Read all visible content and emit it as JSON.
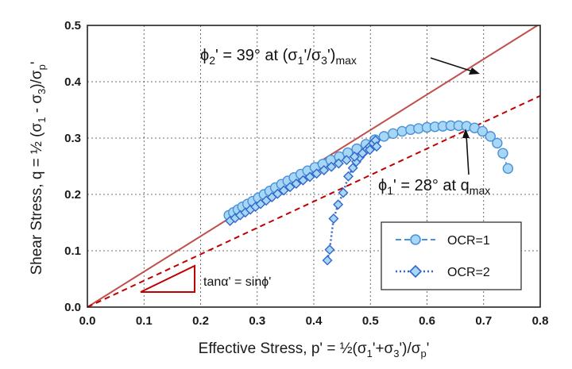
{
  "chart_data": {
    "type": "scatter",
    "xlabel": "Effective Stress, p' = ½(σ₁'+σ₃')/σp'",
    "ylabel": "Shear Stress, q = ½ (σ₁ - σ₃)/σp'",
    "xlim": [
      0.0,
      0.8
    ],
    "ylim": [
      0.0,
      0.5
    ],
    "x_ticks": [
      "0.0",
      "0.1",
      "0.2",
      "0.3",
      "0.4",
      "0.5",
      "0.6",
      "0.7",
      "0.8"
    ],
    "y_ticks": [
      "0.0",
      "0.1",
      "0.2",
      "0.3",
      "0.4",
      "0.5"
    ],
    "grid": "dotted",
    "series": [
      {
        "name": "OCR=1",
        "marker": "circle",
        "line": "dashed",
        "color": "#4a90d9",
        "fill": "#a6d8f5",
        "x": [
          0.25,
          0.258,
          0.266,
          0.274,
          0.283,
          0.292,
          0.302,
          0.312,
          0.322,
          0.332,
          0.343,
          0.354,
          0.365,
          0.377,
          0.389,
          0.402,
          0.416,
          0.43,
          0.445,
          0.46,
          0.476,
          0.492,
          0.508,
          0.524,
          0.54,
          0.556,
          0.571,
          0.585,
          0.6,
          0.614,
          0.628,
          0.642,
          0.656,
          0.67,
          0.684,
          0.698,
          0.712,
          0.724,
          0.734,
          0.743
        ],
        "y": [
          0.163,
          0.168,
          0.173,
          0.178,
          0.183,
          0.188,
          0.194,
          0.2,
          0.206,
          0.212,
          0.218,
          0.224,
          0.23,
          0.236,
          0.242,
          0.248,
          0.254,
          0.261,
          0.267,
          0.274,
          0.281,
          0.289,
          0.297,
          0.303,
          0.308,
          0.312,
          0.315,
          0.317,
          0.319,
          0.32,
          0.321,
          0.322,
          0.322,
          0.321,
          0.318,
          0.312,
          0.303,
          0.291,
          0.273,
          0.246
        ]
      },
      {
        "name": "OCR=2",
        "marker": "diamond",
        "line": "dotted",
        "color": "#3366cc",
        "fill": "#a6d8f5",
        "x": [
          0.424,
          0.428,
          0.435,
          0.443,
          0.452,
          0.461,
          0.469,
          0.475,
          0.481,
          0.487,
          0.493,
          0.499,
          0.505,
          0.509,
          0.252,
          0.261,
          0.27,
          0.279,
          0.288,
          0.297,
          0.306,
          0.316,
          0.326,
          0.336,
          0.347,
          0.358,
          0.369,
          0.381,
          0.393,
          0.405,
          0.418,
          0.431,
          0.444,
          0.458,
          0.472,
          0.486,
          0.499,
          0.511
        ],
        "y": [
          0.083,
          0.102,
          0.157,
          0.182,
          0.203,
          0.232,
          0.247,
          0.258,
          0.266,
          0.273,
          0.279,
          0.285,
          0.291,
          0.296,
          0.153,
          0.158,
          0.163,
          0.168,
          0.173,
          0.178,
          0.183,
          0.189,
          0.195,
          0.201,
          0.207,
          0.213,
          0.219,
          0.225,
          0.231,
          0.237,
          0.243,
          0.249,
          0.255,
          0.261,
          0.267,
          0.273,
          0.279,
          0.285
        ]
      }
    ],
    "lines": [
      {
        "name": "phi2-line",
        "style": "solid",
        "color": "#c0504d",
        "x": [
          0.0,
          0.8
        ],
        "y": [
          0.0,
          0.503
        ]
      },
      {
        "name": "phi1-line",
        "style": "dashed",
        "color": "#c00000",
        "x": [
          0.0,
          0.8
        ],
        "y": [
          0.0,
          0.375
        ]
      }
    ],
    "annotations": {
      "phi2_prefix": "ϕ",
      "phi2_sub": "2",
      "phi2_mid": "' = 39° at (σ",
      "phi2_sub1": "1",
      "phi2_slash": "'/σ",
      "phi2_sub3": "3",
      "phi2_close": "')",
      "phi2_max": "max",
      "phi1_prefix": "ϕ",
      "phi1_sub": "1",
      "phi1_mid": "' = 28° at q",
      "phi1_max": "max",
      "tan_label": "tanα' = sinϕ'"
    },
    "legend": {
      "placement": "bottom-right",
      "entries": [
        "OCR=1",
        "OCR=2"
      ]
    }
  }
}
